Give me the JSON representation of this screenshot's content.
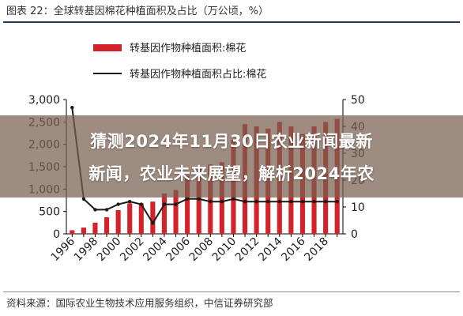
{
  "figure": {
    "title": "图表 22：全球转基因棉花种植面积及占比（万公顷，%）",
    "source": "资料来源：国际农业生物技术应用服务组织，中信证券研究部"
  },
  "overlay": {
    "line1": "猜测2024年11月30日农业新闻最新",
    "line2": "新闻，农业未来展望，解析2024年农"
  },
  "chart_data": {
    "type": "bar",
    "x": [
      1996,
      1997,
      1998,
      1999,
      2000,
      2001,
      2002,
      2003,
      2004,
      2005,
      2006,
      2007,
      2008,
      2009,
      2010,
      2011,
      2012,
      2013,
      2014,
      2015,
      2016,
      2017,
      2018,
      2019
    ],
    "x_tick_labels": [
      "1996",
      "1998",
      "2000",
      "2002",
      "2004",
      "2006",
      "2008",
      "2010",
      "2012",
      "2014",
      "2016",
      "2018"
    ],
    "series": [
      {
        "name": "转基因作物种植面积:棉花",
        "kind": "bar",
        "axis": "left",
        "color": "#d3222a",
        "values": [
          80,
          140,
          250,
          370,
          530,
          680,
          680,
          720,
          900,
          980,
          1300,
          1500,
          1550,
          1600,
          2100,
          2450,
          2400,
          2350,
          2500,
          2400,
          2230,
          2400,
          2500,
          2570
        ]
      },
      {
        "name": "转基因作物种植面积占比:棉花",
        "kind": "line",
        "axis": "right",
        "color": "#1a1a1a",
        "values": [
          47,
          13,
          9,
          9,
          11,
          12,
          11,
          4,
          11,
          11,
          13,
          13,
          12,
          12,
          13,
          12,
          12,
          12,
          12,
          12,
          12,
          12,
          12,
          12
        ]
      }
    ],
    "y_left": {
      "ticks": [
        "0",
        "500",
        "1,000",
        "1,500",
        "2,000",
        "2,500",
        "3,000"
      ],
      "lim": [
        0,
        3000
      ]
    },
    "y_right": {
      "ticks": [
        "0",
        "10",
        "20",
        "30",
        "40",
        "50"
      ],
      "lim": [
        0,
        50
      ]
    },
    "legend_position": "top-center",
    "grid": false
  }
}
